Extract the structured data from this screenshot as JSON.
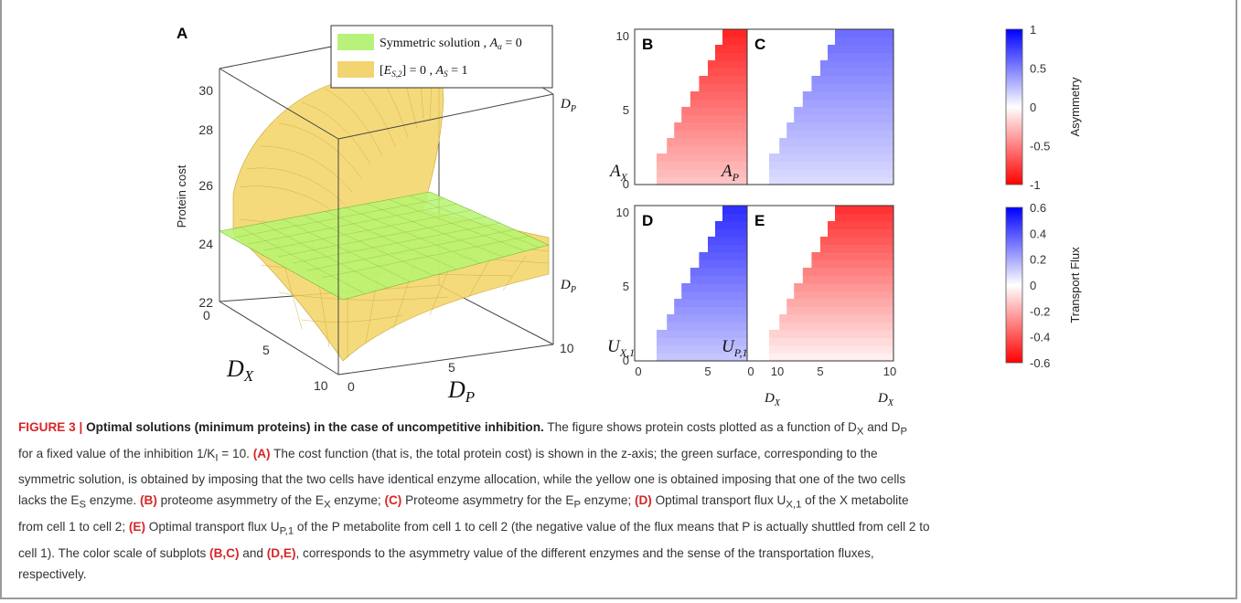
{
  "figure": {
    "panels": {
      "A": {
        "label": "A",
        "zlabel": "Protein cost",
        "xlabel": "D_X",
        "ylabel": "D_P",
        "zticks": [
          "22",
          "24",
          "26",
          "28",
          "30"
        ],
        "xticks": [
          "0",
          "5",
          "10"
        ],
        "yticks": [
          "0",
          "5",
          "10"
        ],
        "box_labels": [
          "D_P",
          "D_P"
        ],
        "legend": [
          {
            "text": "Symmetric solution , A_α = 0",
            "color": "#b8f27a"
          },
          {
            "text": "[E_S,2] = 0 , A_S = 1",
            "color": "#f2d470"
          }
        ]
      },
      "B": {
        "label": "B",
        "var": "A_X",
        "scale": "asym",
        "sign": -1
      },
      "C": {
        "label": "C",
        "var": "A_P",
        "scale": "asym",
        "sign": 1
      },
      "D": {
        "label": "D",
        "var": "U_X,1",
        "scale": "flux",
        "sign": 1
      },
      "E": {
        "label": "E",
        "var": "U_P,1",
        "scale": "flux",
        "sign": -1
      }
    },
    "heatmap_axes": {
      "xticks": [
        "0",
        "5",
        "10"
      ],
      "yticks": [
        "0",
        "5",
        "10"
      ],
      "xlabel": "D_X"
    },
    "colorbars": {
      "asymmetry": {
        "label": "Asymmetry",
        "ticks": [
          "1",
          "0.5",
          "0",
          "-0.5",
          "-1"
        ]
      },
      "flux": {
        "label": "Transport Flux",
        "ticks": [
          "0.6",
          "0.4",
          "0.2",
          "0",
          "-0.2",
          "-0.4",
          "-0.6"
        ]
      }
    }
  },
  "caption": {
    "figure_number": "FIGURE 3 |",
    "title": "Optimal solutions (minimum proteins) in the case of uncompetitive inhibition.",
    "line1_rest": " The figure shows protein costs plotted as a function of D",
    "line1_sub": "X",
    "line1_and": " and D",
    "line1_sub2": "P",
    "line2": "for a fixed value of the inhibition 1/K",
    "line2_sub": "I",
    "line2_b": " = 10. ",
    "line2_A": "(A)",
    "line2_c": " The cost function (that is, the total protein cost) is shown in the z-axis; the green surface, corresponding to the",
    "line3": "symmetric solution, is obtained by imposing that the two cells have identical enzyme allocation, while the yellow one is obtained imposing that one of the two cells",
    "line4_a": "lacks the E",
    "line4_sub": "S",
    "line4_b": " enzyme. ",
    "line4_B": "(B)",
    "line4_c": " proteome asymmetry of the E",
    "line4_sub2": "X",
    "line4_d": " enzyme; ",
    "line4_C": "(C)",
    "line4_e": " Proteome asymmetry for the E",
    "line4_sub3": "P",
    "line4_f": " enzyme; ",
    "line4_D": "(D)",
    "line4_g": " Optimal transport flux U",
    "line4_sub4": "X,1",
    "line4_h": " of the X metabolite",
    "line5_a": "from cell 1 to cell 2; ",
    "line5_E": "(E)",
    "line5_b": " Optimal transport flux U",
    "line5_sub": "P,1",
    "line5_c": " of the P metabolite from cell 1 to cell 2 (the negative value of the flux means that P is actually shuttled from cell 2 to",
    "line6_a": "cell 1). The color scale of subplots ",
    "line6_BC": "(B,C)",
    "line6_and": " and ",
    "line6_DE": "(D,E)",
    "line6_b": ", corresponds to the asymmetry value of the different enzymes and the sense of the transportation fluxes,",
    "line7": "respectively."
  },
  "colors": {
    "red": "#ff0000",
    "blue": "#0000ff",
    "green_surface": "#b8f27a",
    "yellow_surface": "#f2d470",
    "caption_accent": "#d62728"
  }
}
